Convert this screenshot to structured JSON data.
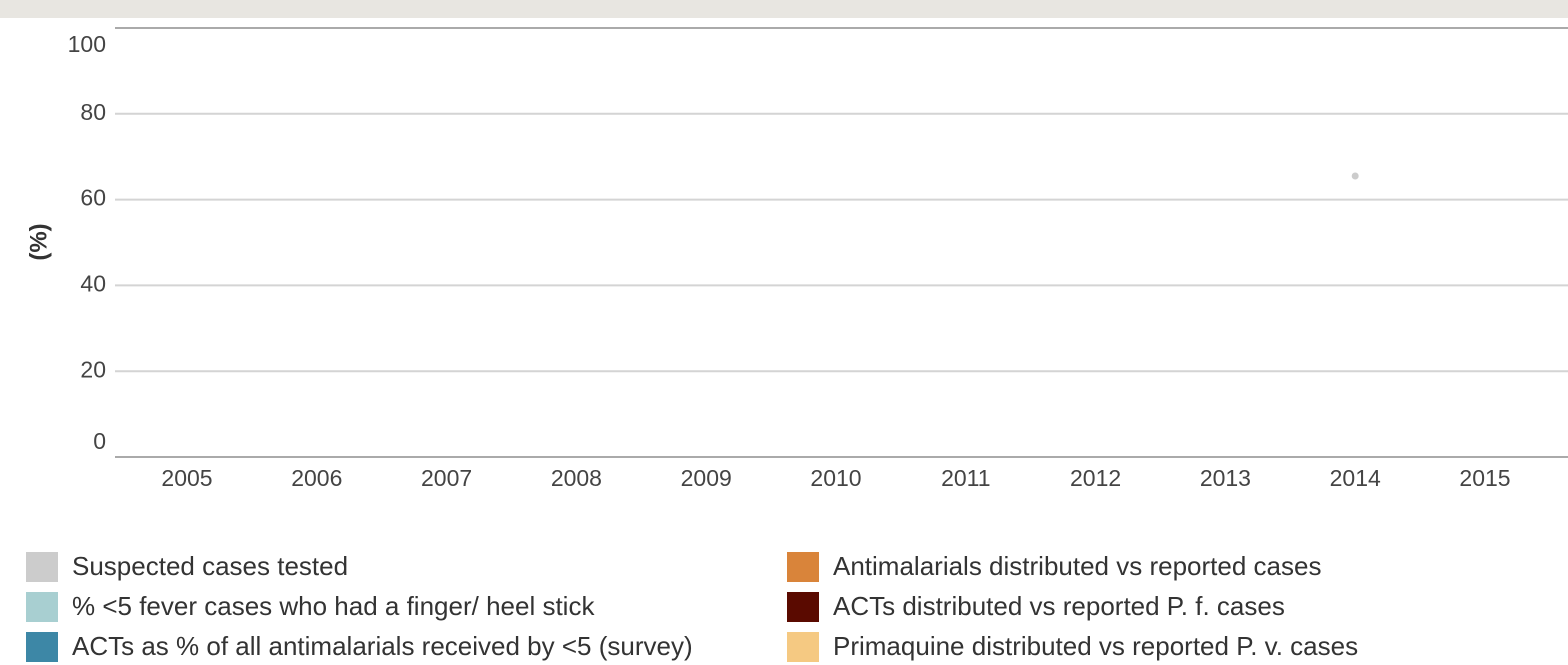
{
  "chart_data": {
    "type": "line",
    "y_label": "(%)",
    "categories": [
      "2005",
      "2006",
      "2007",
      "2008",
      "2009",
      "2010",
      "2011",
      "2012",
      "2013",
      "2014",
      "2015"
    ],
    "series": [
      {
        "name": "Suspected cases tested",
        "color": "#cccccc",
        "values": [
          null,
          null,
          null,
          null,
          null,
          null,
          null,
          null,
          null,
          65.5,
          null
        ]
      },
      {
        "name": "% <5 fever cases who had a finger/ heel stick",
        "color": "#a8cfd1",
        "values": [
          null,
          null,
          null,
          null,
          null,
          null,
          null,
          null,
          null,
          null,
          null
        ]
      },
      {
        "name": "ACTs as % of all antimalarials received by <5 (survey)",
        "color": "#3d87a6",
        "values": [
          null,
          null,
          null,
          null,
          null,
          null,
          null,
          null,
          null,
          null,
          null
        ]
      },
      {
        "name": "Antimalarials distributed vs reported cases",
        "color": "#d9843a",
        "values": [
          null,
          null,
          null,
          null,
          null,
          null,
          null,
          null,
          null,
          null,
          null
        ]
      },
      {
        "name": "ACTs distributed vs reported P. f. cases",
        "color": "#5a0a00",
        "values": [
          null,
          null,
          null,
          null,
          null,
          null,
          null,
          null,
          null,
          null,
          null
        ]
      },
      {
        "name": "Primaquine distributed vs reported P. v. cases",
        "color": "#f5c982",
        "values": [
          null,
          null,
          null,
          null,
          null,
          null,
          null,
          null,
          null,
          null,
          null
        ]
      }
    ],
    "ylim": [
      0,
      100
    ],
    "yticks": [
      0,
      20,
      40,
      60,
      80,
      100
    ],
    "grid": true
  }
}
